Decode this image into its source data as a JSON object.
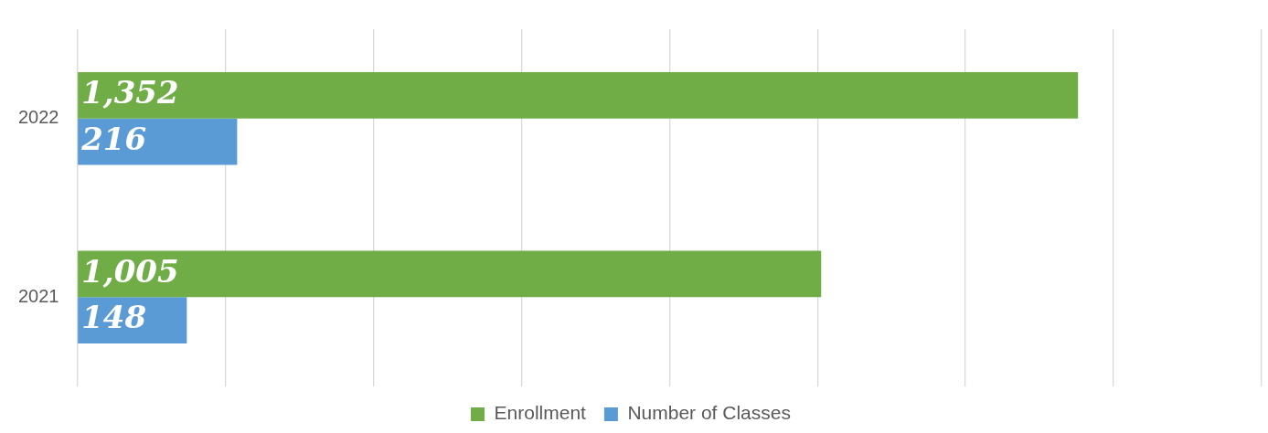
{
  "chart_data": {
    "type": "bar",
    "orientation": "horizontal",
    "categories": [
      "2022",
      "2021"
    ],
    "series": [
      {
        "name": "Enrollment",
        "color": "#70ad47",
        "values": [
          1352,
          1005
        ],
        "value_labels": [
          "1,352",
          "1,005"
        ]
      },
      {
        "name": "Number of Classes",
        "color": "#5b9bd5",
        "values": [
          216,
          148
        ],
        "value_labels": [
          "216",
          "148"
        ]
      }
    ],
    "xlim": [
      0,
      1600
    ],
    "xticks": [
      {
        "value": 0,
        "label": null
      },
      {
        "value": 200,
        "label": null
      },
      {
        "value": 400,
        "label": null
      },
      {
        "value": 600,
        "label": null
      },
      {
        "value": 800,
        "label": null
      },
      {
        "value": 1000,
        "label": null
      },
      {
        "value": 1200,
        "label": null
      },
      {
        "value": 1400,
        "label": null
      },
      {
        "value": 1600,
        "label": null
      }
    ],
    "tick_labels": "y",
    "grid": "x",
    "legend": "bottom"
  }
}
